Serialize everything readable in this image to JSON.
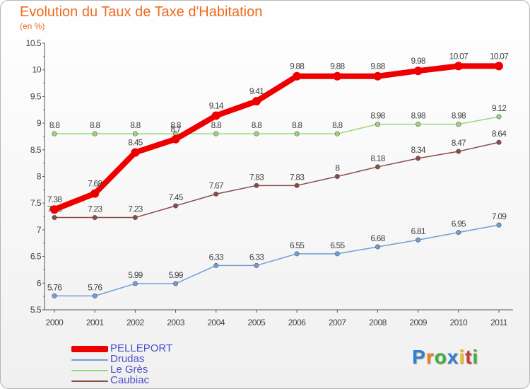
{
  "header": {
    "title": "Evolution du Taux de Taxe d'Habitation",
    "subtitle": "(en %)"
  },
  "chart_data": {
    "type": "line",
    "title": "Evolution du Taux de Taxe d'Habitation",
    "ylabel": "(en %)",
    "xlabel": "",
    "x": [
      "2000",
      "2001",
      "2002",
      "2003",
      "2004",
      "2005",
      "2006",
      "2007",
      "2008",
      "2009",
      "2010",
      "2011"
    ],
    "ylim": [
      5.5,
      10.5
    ],
    "yticks": [
      "5.5",
      "6",
      "6.5",
      "7",
      "7.5",
      "8",
      "8.5",
      "9",
      "9.5",
      "10",
      "10.5"
    ],
    "grid": false,
    "legend_position": "bottom-left",
    "series": [
      {
        "name": "PELLEPORT",
        "color": "#ee0000",
        "emphasis": true,
        "values": [
          7.38,
          7.68,
          8.45,
          8.7,
          9.14,
          9.41,
          9.88,
          9.88,
          9.88,
          9.98,
          10.07,
          10.07
        ],
        "labels": [
          "7.38",
          "7.68",
          "8.45",
          "8.7",
          "9.14",
          "9.41",
          "9.88",
          "9.88",
          "9.88",
          "9.98",
          "10.07",
          "10.07"
        ]
      },
      {
        "name": "Drudas",
        "color": "#6f9fd4",
        "values": [
          5.76,
          5.76,
          5.99,
          5.99,
          6.33,
          6.33,
          6.55,
          6.55,
          6.68,
          6.81,
          6.95,
          7.09
        ],
        "labels": [
          "5.76",
          "5.76",
          "5.99",
          "5.99",
          "6.33",
          "6.33",
          "6.55",
          "6.55",
          "6.68",
          "6.81",
          "6.95",
          "7.09"
        ]
      },
      {
        "name": "Le Grès",
        "color": "#9bd776",
        "values": [
          8.8,
          8.8,
          8.8,
          8.8,
          8.8,
          8.8,
          8.8,
          8.8,
          8.98,
          8.98,
          8.98,
          9.12
        ],
        "labels": [
          "8.8",
          "8.8",
          "8.8",
          "8.8",
          "8.8",
          "8.8",
          "8.8",
          "8.8",
          "8.98",
          "8.98",
          "8.98",
          "9.12"
        ]
      },
      {
        "name": "Caubiac",
        "color": "#8b4a4a",
        "values": [
          7.23,
          7.23,
          7.23,
          7.45,
          7.67,
          7.83,
          7.83,
          8.0,
          8.18,
          8.34,
          8.47,
          8.64
        ],
        "labels": [
          "7.23",
          "7.23",
          "7.23",
          "7.45",
          "7.67",
          "7.83",
          "7.83",
          "8",
          "8.18",
          "8.34",
          "8.47",
          "8.64"
        ]
      }
    ]
  },
  "logo": {
    "letters": [
      "P",
      "r",
      "o",
      "x",
      "i",
      "t",
      "i"
    ],
    "colors": [
      "#2f7fd0",
      "#f07d20",
      "#3fae3f",
      "#2f7fd0",
      "#e8c020",
      "#d03a3a",
      "#3fae3f"
    ]
  }
}
